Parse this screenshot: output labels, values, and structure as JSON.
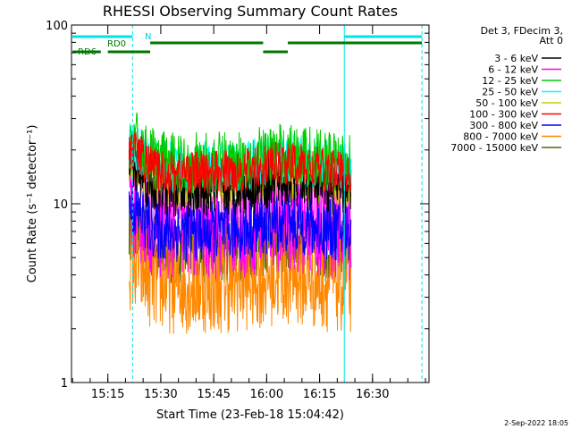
{
  "chart_data": {
    "type": "line",
    "title": "RHESSI Observing Summary Count Rates",
    "xlabel": "Start Time (23-Feb-18 15:04:42)",
    "ylabel": "Count Rate (s⁻¹ detector⁻¹)",
    "yscale": "log",
    "ylim": [
      1,
      100
    ],
    "xlim": [
      "15:04:42",
      "16:46:00"
    ],
    "x_tick_labels": [
      "15:15",
      "15:30",
      "15:45",
      "16:00",
      "16:15",
      "16:30"
    ],
    "y_tick_labels": [
      "1",
      "10",
      "100"
    ],
    "legend_header": [
      "Det 3, FDecim 3,",
      "Att 0"
    ],
    "legend_position": "right-outside",
    "data_start": "15:21",
    "data_end": "16:24",
    "series": [
      {
        "name": "3 - 6 keV",
        "color": "#000000",
        "level": 12,
        "spread": 0.16
      },
      {
        "name": "6 - 12 keV",
        "color": "#ff00ff",
        "level": 8,
        "spread": 0.35
      },
      {
        "name": "12 - 25 keV",
        "color": "#00cc00",
        "level": 17,
        "spread": 0.18
      },
      {
        "name": "25 - 50 keV",
        "color": "#00ffff",
        "level": 16,
        "spread": 0.15
      },
      {
        "name": "50 - 100 keV",
        "color": "#cccc00",
        "level": 13,
        "spread": 0.15
      },
      {
        "name": "100 - 300 keV",
        "color": "#ff0000",
        "level": 15,
        "spread": 0.13
      },
      {
        "name": "300 - 800 keV",
        "color": "#0000ff",
        "level": 7,
        "spread": 0.18
      },
      {
        "name": "800 - 7000 keV",
        "color": "#ff8800",
        "level": 3.6,
        "spread": 0.3
      },
      {
        "name": "7000 - 15000 keV",
        "color": "#556600",
        "level": 5.5,
        "spread": 0.2
      }
    ],
    "annotations": {
      "night_label": "N",
      "rd0_label": "RD0",
      "rd6_label": "RD6",
      "vertical_lines": [
        {
          "time": "15:22",
          "style": "dashed"
        },
        {
          "time": "16:22",
          "style": "solid"
        },
        {
          "time": "16:44",
          "style": "dashed"
        }
      ],
      "night_bars": [
        [
          "15:05",
          "15:22"
        ],
        [
          "16:22",
          "16:44"
        ]
      ],
      "rd0_bars": [
        [
          "15:27",
          "15:59"
        ],
        [
          "16:06",
          "16:44"
        ]
      ],
      "rd6_bars": [
        [
          "15:05",
          "15:13"
        ],
        [
          "15:15",
          "15:27"
        ],
        [
          "15:59",
          "16:06"
        ]
      ]
    },
    "grid": false
  },
  "footer": {
    "date_stamp": "2-Sep-2022 18:05"
  }
}
